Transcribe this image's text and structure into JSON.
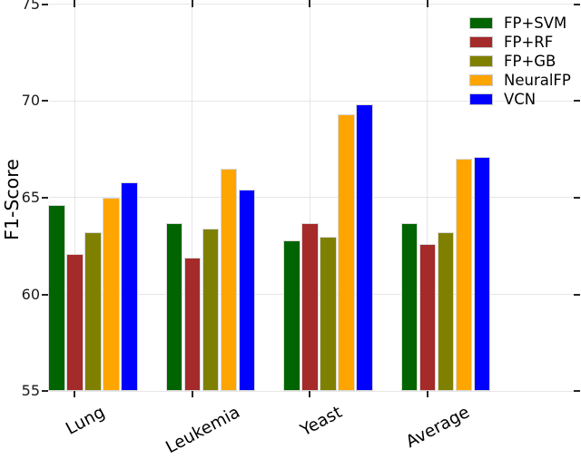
{
  "chart_data": {
    "type": "bar",
    "title": "",
    "xlabel": "",
    "ylabel": "F1-Score",
    "categories": [
      "Lung",
      "Leukemia",
      "Yeast",
      "Average"
    ],
    "series": [
      {
        "name": "FP+SVM",
        "color": "#006400",
        "values": [
          64.6,
          63.7,
          62.8,
          63.7
        ]
      },
      {
        "name": "FP+RF",
        "color": "#A52A2A",
        "values": [
          62.1,
          61.9,
          63.7,
          62.6
        ]
      },
      {
        "name": "FP+GB",
        "color": "#808000",
        "values": [
          63.2,
          63.4,
          63.0,
          63.2
        ]
      },
      {
        "name": "NeuralFP",
        "color": "#FFA500",
        "values": [
          65.0,
          66.5,
          69.3,
          67.0
        ]
      },
      {
        "name": "VCN",
        "color": "#0000FF",
        "values": [
          65.8,
          65.4,
          69.8,
          67.1
        ]
      }
    ],
    "ylim": [
      55,
      75
    ],
    "yticks": [
      "55",
      "60",
      "65",
      "70",
      "75"
    ],
    "grid": true,
    "grid_color": "#e6e6e6",
    "background_color": "#ffffff",
    "legend_position": "upper right",
    "legend_labels": [
      "FP+SVM",
      "FP+RF",
      "FP+GB",
      "NeuralFP",
      "VCN"
    ]
  }
}
